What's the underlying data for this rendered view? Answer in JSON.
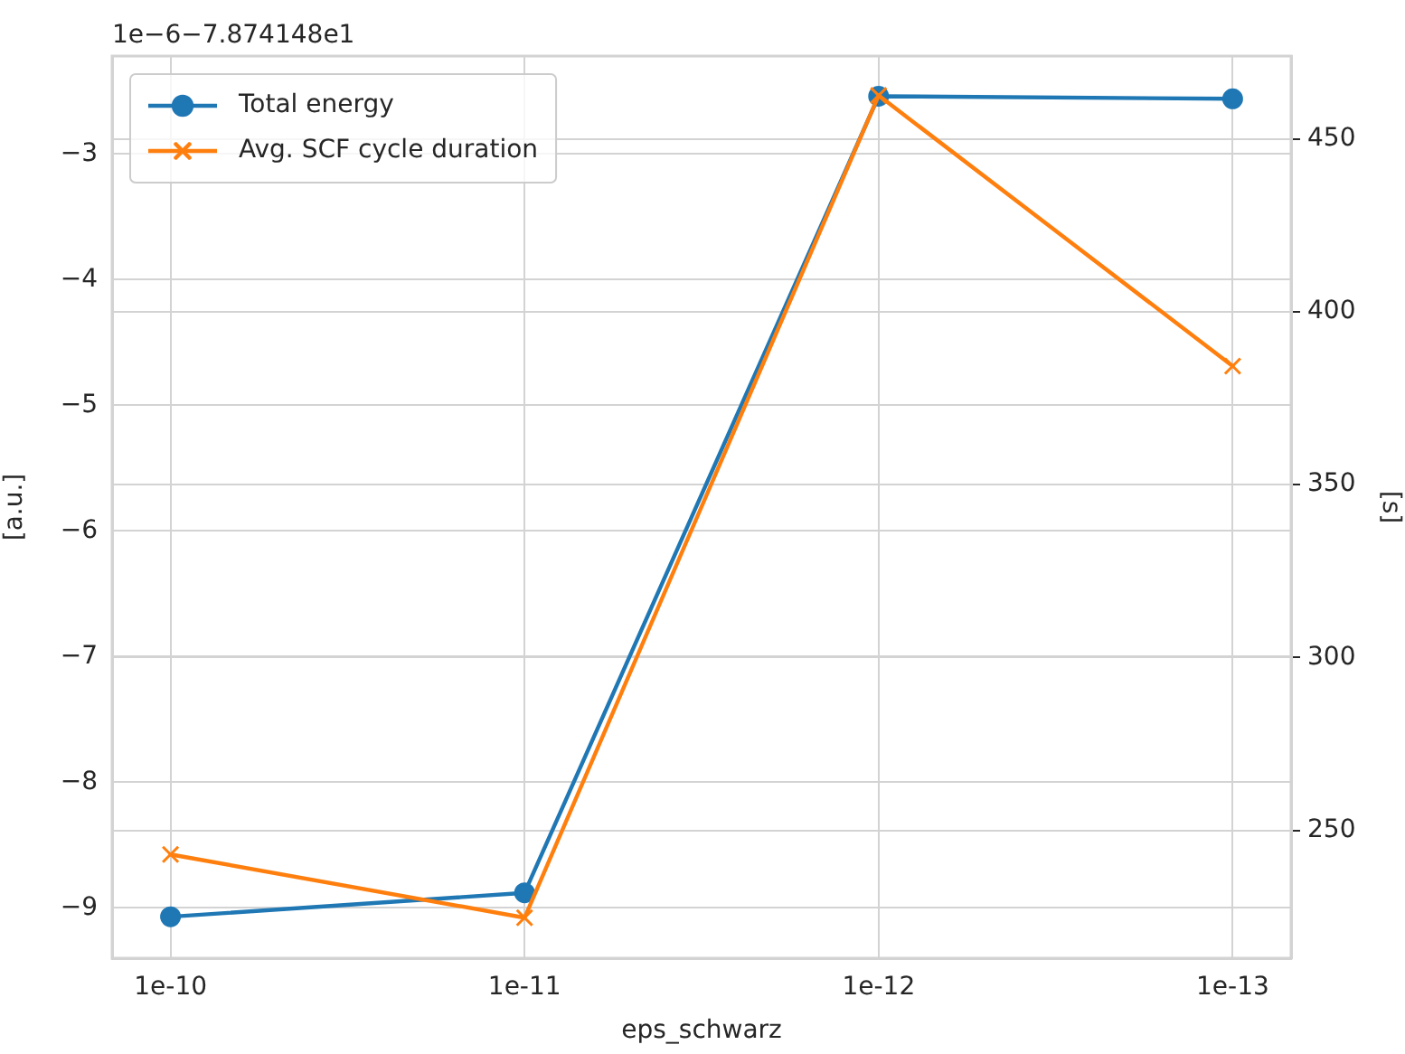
{
  "chart_data": {
    "type": "line",
    "categories": [
      "1e-10",
      "1e-11",
      "1e-12",
      "1e-13"
    ],
    "xlabel": "eps_schwarz",
    "ylabel": "[a.u.]",
    "y2label": "[s]",
    "annotations": [
      "1e−6−7.874148e1"
    ],
    "series": [
      {
        "name": "Total energy",
        "color": "#1f77b4",
        "marker": "circle",
        "values": [
          -9.07,
          -8.88,
          -2.54,
          -2.56
        ]
      },
      {
        "name": "Avg. SCF cycle duration",
        "color": "#ff7f0e",
        "marker": "cross",
        "axis": "y2",
        "values": [
          243,
          224.7,
          462.6,
          384.3
        ]
      }
    ],
    "ylim": [
      -9.4,
      -2.22
    ],
    "yticks": [
      {
        "value": -9,
        "label": "−9"
      },
      {
        "value": -8,
        "label": "−8"
      },
      {
        "value": -7,
        "label": "−7"
      },
      {
        "value": -6,
        "label": "−6"
      },
      {
        "value": -5,
        "label": "−5"
      },
      {
        "value": -4,
        "label": "−4"
      },
      {
        "value": -3,
        "label": "−3"
      }
    ],
    "y2lim": [
      213,
      474
    ],
    "y2ticks": [
      250,
      300,
      350,
      400,
      450
    ],
    "grid": true,
    "legend": "top left",
    "line_style": "solid"
  }
}
